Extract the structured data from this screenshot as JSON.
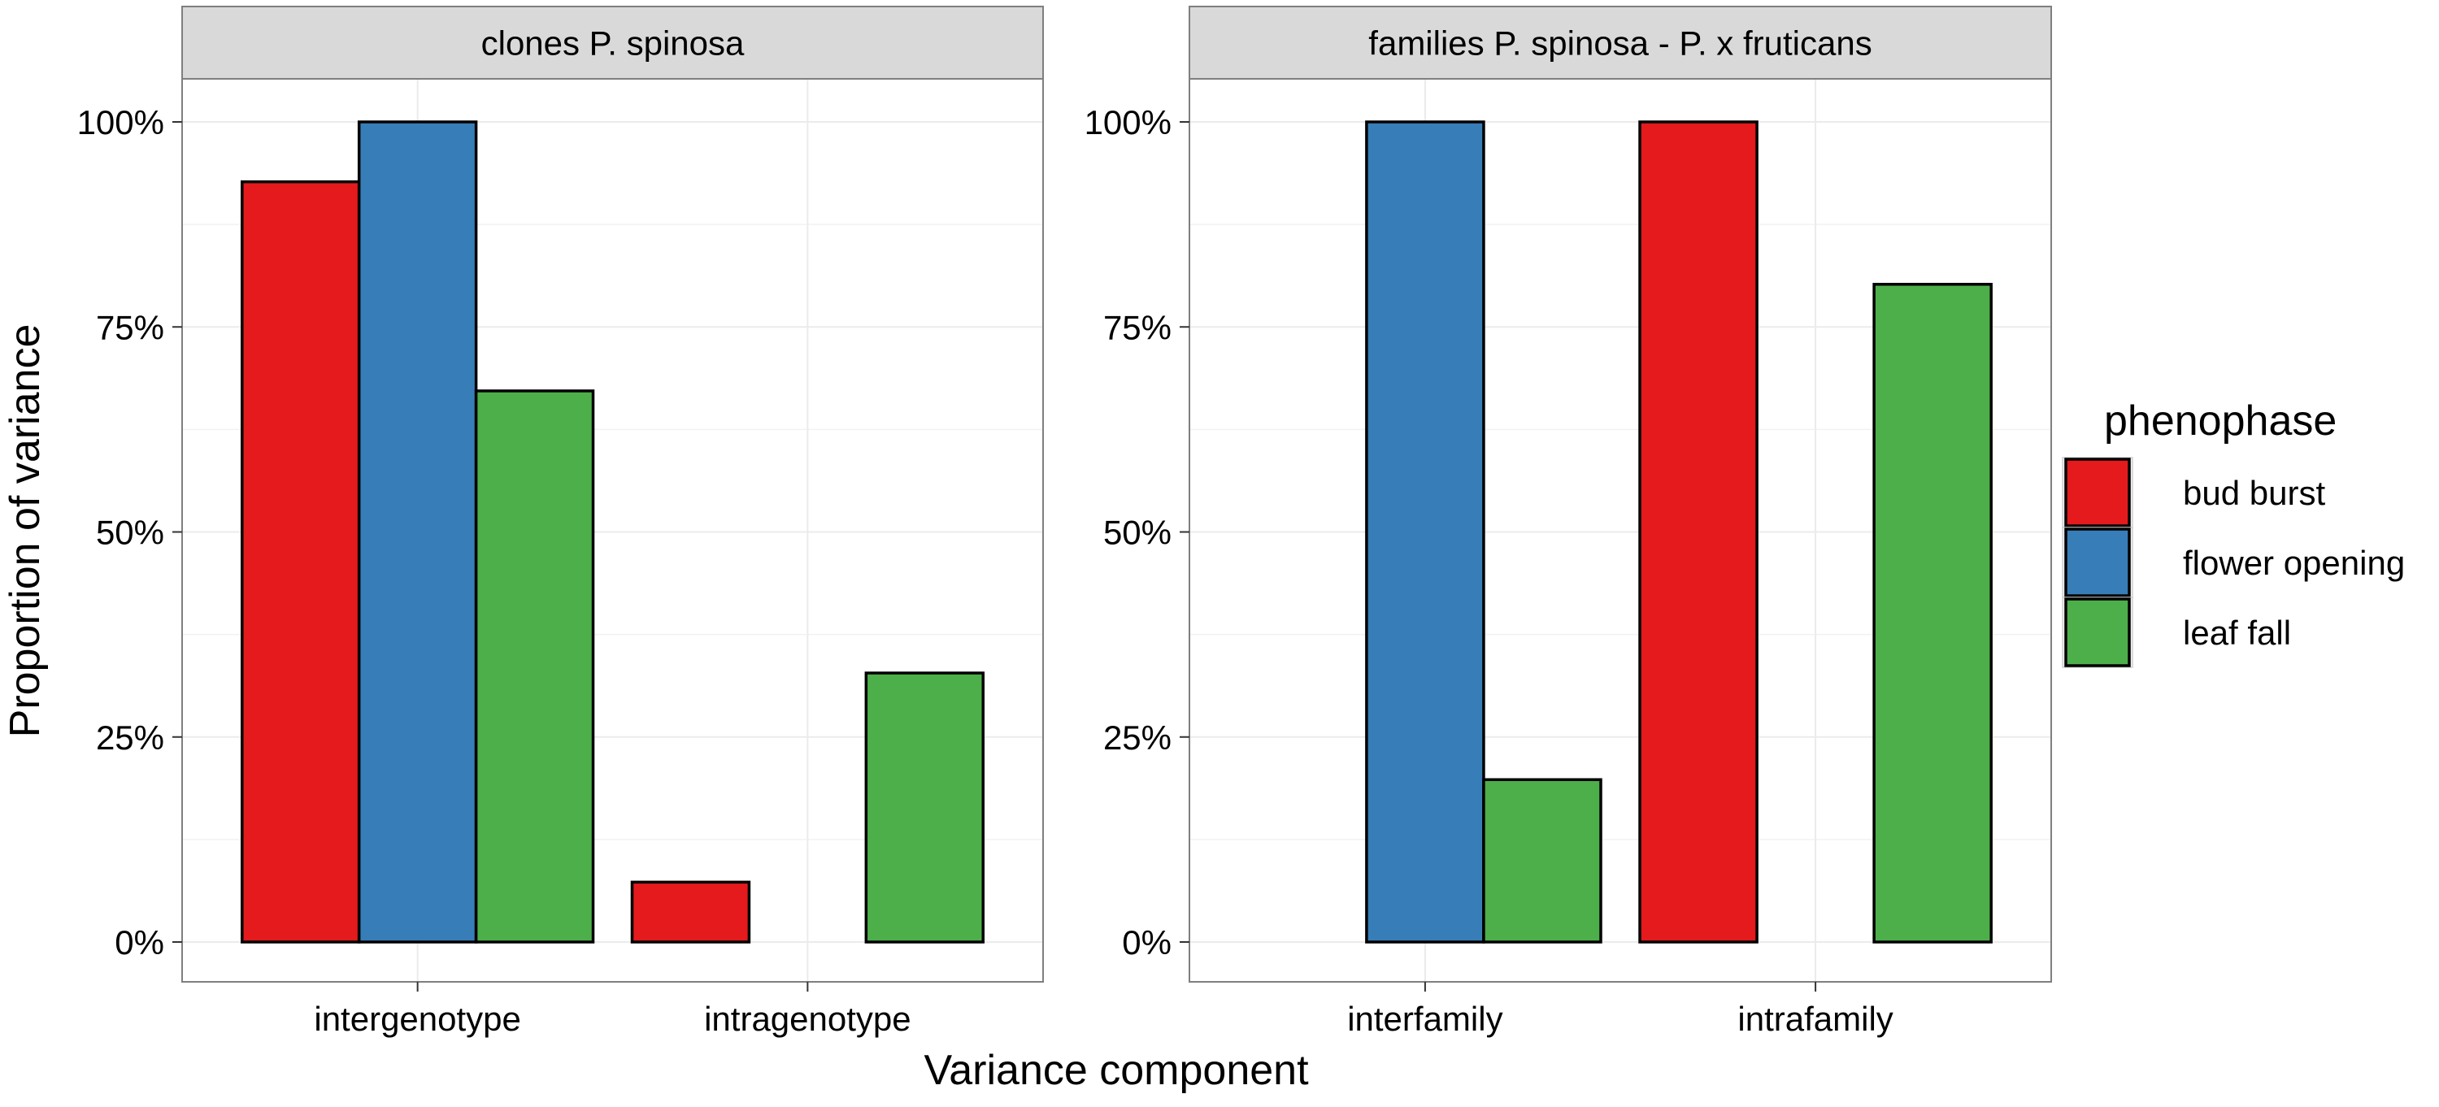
{
  "chart_data": {
    "type": "bar",
    "ylabel": "Proportion of variance",
    "xlabel": "Variance component",
    "ylim": [
      0,
      1
    ],
    "yticks": [
      0,
      0.25,
      0.5,
      0.75,
      1.0
    ],
    "ytick_labels": [
      "0%",
      "25%",
      "50%",
      "75%",
      "100%"
    ],
    "grid": true,
    "legend": {
      "title": "phenophase",
      "placement": "right",
      "entries": [
        {
          "name": "bud burst",
          "color": "#e41a1c"
        },
        {
          "name": "flower opening",
          "color": "#377eb8"
        },
        {
          "name": "leaf fall",
          "color": "#4daf4a"
        }
      ]
    },
    "panels": [
      {
        "title": "clones P. spinosa",
        "categories": [
          "intergenotype",
          "intragenotype"
        ],
        "series": [
          {
            "name": "bud burst",
            "values": [
              0.927,
              0.073
            ]
          },
          {
            "name": "flower opening",
            "values": [
              1.0,
              0.0
            ]
          },
          {
            "name": "leaf fall",
            "values": [
              0.672,
              0.328
            ]
          }
        ]
      },
      {
        "title": "families P. spinosa - P. x fruticans",
        "categories": [
          "interfamily",
          "intrafamily"
        ],
        "series": [
          {
            "name": "bud burst",
            "values": [
              0.0,
              1.0
            ]
          },
          {
            "name": "flower opening",
            "values": [
              1.0,
              0.0
            ]
          },
          {
            "name": "leaf fall",
            "values": [
              0.198,
              0.802
            ]
          }
        ]
      }
    ]
  }
}
